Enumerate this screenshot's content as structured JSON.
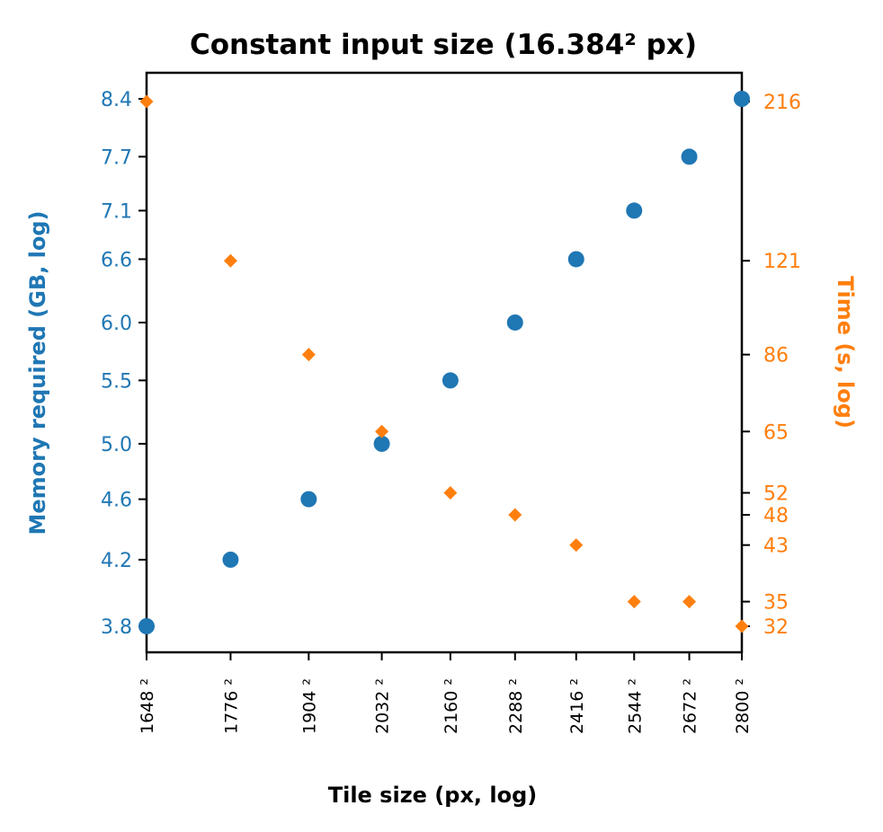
{
  "colors": {
    "memory": "#1f77b4",
    "time": "#ff7f0e",
    "axis": "#000000",
    "background": "#ffffff"
  },
  "chart_data": {
    "type": "scatter",
    "title": "Constant input size (16.384² px)",
    "xlabel": "Tile size (px, log)",
    "ylabel_left": "Memory required (GB, log)",
    "ylabel_right": "Time (s, log)",
    "x_scale": "log",
    "y_left_scale": "log",
    "y_right_scale": "log",
    "grid": false,
    "x_tick_bases": [
      1648,
      1776,
      1904,
      2032,
      2160,
      2288,
      2416,
      2544,
      2672,
      2800
    ],
    "x_tick_labels": [
      "1648 ²",
      "1776 ²",
      "1904 ²",
      "2032 ²",
      "2160 ²",
      "2288 ²",
      "2416 ²",
      "2544 ²",
      "2672 ²",
      "2800 ²"
    ],
    "y_left_ticks": [
      3.8,
      4.2,
      4.6,
      5.0,
      5.5,
      6.0,
      6.6,
      7.1,
      7.7,
      8.4
    ],
    "y_left_tick_labels": [
      "3.8",
      "4.2",
      "4.6",
      "5.0",
      "5.5",
      "6.0",
      "6.6",
      "7.1",
      "7.7",
      "8.4"
    ],
    "y_right_ticks": [
      32,
      35,
      43,
      48,
      52,
      65,
      86,
      121,
      216
    ],
    "y_right_tick_labels": [
      "32",
      "35",
      "43",
      "48",
      "52",
      "65",
      "86",
      "121",
      "216"
    ],
    "series": [
      {
        "axis": "left",
        "marker": "circle",
        "x_bases": [
          1648,
          1776,
          1904,
          2032,
          2160,
          2288,
          2416,
          2544,
          2672,
          2800
        ],
        "values": [
          3.8,
          4.2,
          4.6,
          5.0,
          5.5,
          6.0,
          6.6,
          7.1,
          7.7,
          8.4
        ]
      },
      {
        "axis": "right",
        "marker": "diamond",
        "x_bases": [
          1648,
          1776,
          1904,
          2032,
          2160,
          2288,
          2416,
          2544,
          2672,
          2800
        ],
        "values": [
          216,
          121,
          86,
          65,
          52,
          48,
          43,
          35,
          35,
          32
        ]
      }
    ]
  }
}
